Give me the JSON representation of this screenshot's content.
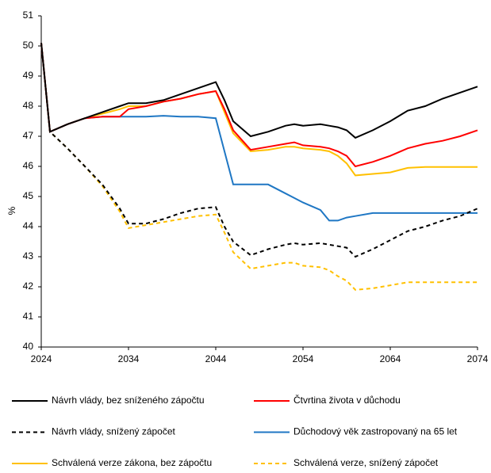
{
  "chart_data": {
    "type": "line",
    "y_label": "%",
    "x": [
      2024,
      2025,
      2027,
      2029,
      2031,
      2033,
      2034,
      2036,
      2038,
      2040,
      2042,
      2044,
      2045,
      2046,
      2048,
      2050,
      2052,
      2053,
      2054,
      2056,
      2057,
      2058,
      2059,
      2060,
      2062,
      2064,
      2066,
      2068,
      2070,
      2072,
      2074
    ],
    "xlim": [
      2024,
      2074
    ],
    "xticks": [
      2024,
      2034,
      2044,
      2054,
      2064,
      2074
    ],
    "ylim": [
      40,
      51
    ],
    "yticks": [
      40,
      41,
      42,
      43,
      44,
      45,
      46,
      47,
      48,
      49,
      50,
      51
    ],
    "series": [
      {
        "name": "Návrh vlády, bez sníženého zápočtu",
        "color": "#000000",
        "dashed": false,
        "values": [
          50.1,
          47.15,
          47.4,
          47.6,
          47.8,
          48.0,
          48.1,
          48.1,
          48.2,
          48.4,
          48.6,
          48.8,
          48.2,
          47.5,
          47.0,
          47.15,
          47.35,
          47.4,
          47.35,
          47.4,
          47.35,
          47.3,
          47.2,
          46.95,
          47.2,
          47.5,
          47.85,
          48.0,
          48.25,
          48.45,
          48.65
        ]
      },
      {
        "name": "Čtvrtina života v důchodu",
        "color": "#ff0000",
        "dashed": false,
        "values": [
          50.1,
          47.15,
          47.4,
          47.6,
          47.65,
          47.65,
          47.9,
          48.0,
          48.15,
          48.25,
          48.4,
          48.5,
          47.9,
          47.2,
          46.55,
          46.65,
          46.75,
          46.8,
          46.7,
          46.65,
          46.6,
          46.5,
          46.35,
          46.0,
          46.15,
          46.35,
          46.6,
          46.75,
          46.85,
          47.0,
          47.2
        ]
      },
      {
        "name": "Návrh vlády, snížený zápočet",
        "color": "#000000",
        "dashed": true,
        "values": [
          50.1,
          47.15,
          46.6,
          46.0,
          45.4,
          44.6,
          44.1,
          44.1,
          44.25,
          44.45,
          44.6,
          44.65,
          44.0,
          43.5,
          43.05,
          43.25,
          43.4,
          43.45,
          43.4,
          43.45,
          43.4,
          43.35,
          43.3,
          43.0,
          43.25,
          43.55,
          43.85,
          44.0,
          44.2,
          44.35,
          44.6
        ]
      },
      {
        "name": "Důchodový věk zastropovaný na 65 let",
        "color": "#1f77c4",
        "dashed": false,
        "values": [
          50.1,
          47.15,
          47.4,
          47.6,
          47.65,
          47.65,
          47.65,
          47.65,
          47.68,
          47.65,
          47.65,
          47.6,
          46.5,
          45.4,
          45.4,
          45.4,
          45.1,
          44.95,
          44.8,
          44.55,
          44.2,
          44.2,
          44.3,
          44.35,
          44.45,
          44.45,
          44.45,
          44.45,
          44.45,
          44.45,
          44.45
        ]
      },
      {
        "name": "Schválená verze zákona, bez zápočtu",
        "color": "#ffc000",
        "dashed": false,
        "values": [
          50.1,
          47.15,
          47.4,
          47.6,
          47.75,
          47.9,
          48.0,
          48.0,
          48.15,
          48.25,
          48.4,
          48.5,
          47.8,
          47.1,
          46.5,
          46.55,
          46.65,
          46.65,
          46.6,
          46.55,
          46.5,
          46.35,
          46.1,
          45.7,
          45.75,
          45.8,
          45.95,
          45.98,
          45.98,
          45.98,
          45.98
        ]
      },
      {
        "name": "Schválená verze, snížený zápočet",
        "color": "#ffc000",
        "dashed": true,
        "values": [
          50.1,
          47.15,
          46.6,
          46.0,
          45.35,
          44.5,
          43.95,
          44.05,
          44.15,
          44.25,
          44.35,
          44.4,
          43.8,
          43.15,
          42.6,
          42.7,
          42.8,
          42.8,
          42.7,
          42.65,
          42.55,
          42.35,
          42.2,
          41.9,
          41.95,
          42.05,
          42.15,
          42.15,
          42.15,
          42.15,
          42.15
        ]
      }
    ]
  }
}
